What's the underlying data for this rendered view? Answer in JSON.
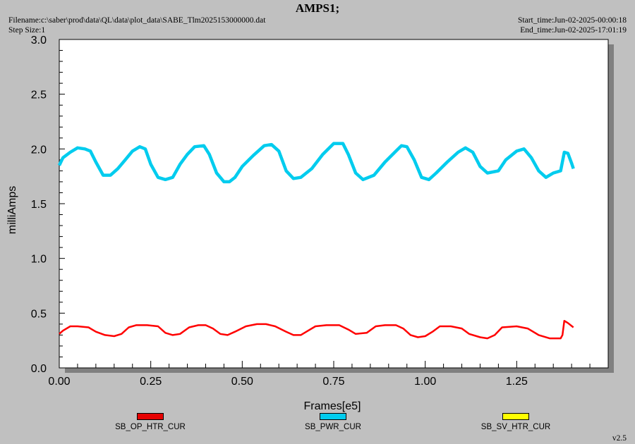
{
  "header": {
    "title": "AMPS1;",
    "filename": "Filename:c:\\saber\\prod\\data\\QL\\data\\plot_data\\SABE_Tlm2025153000000.dat",
    "step_size": "Step Size:1",
    "start_time": "Start_time:Jun-02-2025-00:00:18",
    "end_time": "End_time:Jun-02-2025-17:01:19",
    "version": "v2.5"
  },
  "chart_data": {
    "type": "line",
    "title": "AMPS1;",
    "xlabel": "Frames[e5]",
    "ylabel": "milliAmps",
    "xlim": [
      0,
      1.5
    ],
    "ylim": [
      0,
      3.0
    ],
    "x_ticks": [
      "0.00",
      "0.25",
      "0.50",
      "0.75",
      "1.00",
      "1.25"
    ],
    "y_ticks": [
      "0.0",
      "0.5",
      "1.0",
      "1.5",
      "2.0",
      "2.5",
      "3.0"
    ],
    "legend_position": "bottom",
    "series": [
      {
        "name": "SB_OP_HTR_CUR",
        "color": "#ff0000",
        "x": [
          0.0,
          0.01,
          0.03,
          0.05,
          0.08,
          0.1,
          0.125,
          0.15,
          0.17,
          0.19,
          0.21,
          0.24,
          0.27,
          0.29,
          0.31,
          0.33,
          0.355,
          0.38,
          0.4,
          0.42,
          0.44,
          0.46,
          0.48,
          0.51,
          0.54,
          0.565,
          0.59,
          0.62,
          0.64,
          0.66,
          0.68,
          0.7,
          0.73,
          0.765,
          0.79,
          0.81,
          0.84,
          0.865,
          0.89,
          0.92,
          0.94,
          0.96,
          0.98,
          1.0,
          1.02,
          1.04,
          1.07,
          1.1,
          1.12,
          1.15,
          1.17,
          1.19,
          1.21,
          1.25,
          1.28,
          1.31,
          1.34,
          1.37,
          1.375,
          1.38,
          1.39,
          1.405
        ],
        "y": [
          0.31,
          0.34,
          0.38,
          0.38,
          0.37,
          0.33,
          0.3,
          0.29,
          0.31,
          0.37,
          0.39,
          0.39,
          0.38,
          0.32,
          0.3,
          0.31,
          0.37,
          0.39,
          0.39,
          0.36,
          0.31,
          0.3,
          0.33,
          0.38,
          0.4,
          0.4,
          0.38,
          0.33,
          0.3,
          0.3,
          0.34,
          0.38,
          0.39,
          0.39,
          0.35,
          0.31,
          0.32,
          0.38,
          0.39,
          0.39,
          0.36,
          0.3,
          0.28,
          0.29,
          0.33,
          0.38,
          0.38,
          0.36,
          0.31,
          0.28,
          0.27,
          0.3,
          0.37,
          0.38,
          0.36,
          0.3,
          0.27,
          0.27,
          0.3,
          0.43,
          0.41,
          0.37
        ]
      },
      {
        "name": "SB_PWR_CUR",
        "color": "#00ccee",
        "x": [
          0.0,
          0.01,
          0.03,
          0.05,
          0.07,
          0.085,
          0.1,
          0.12,
          0.14,
          0.16,
          0.18,
          0.2,
          0.22,
          0.235,
          0.25,
          0.27,
          0.29,
          0.31,
          0.33,
          0.35,
          0.37,
          0.395,
          0.41,
          0.43,
          0.45,
          0.465,
          0.48,
          0.5,
          0.53,
          0.56,
          0.58,
          0.6,
          0.62,
          0.64,
          0.66,
          0.69,
          0.72,
          0.75,
          0.775,
          0.79,
          0.81,
          0.83,
          0.86,
          0.89,
          0.92,
          0.935,
          0.95,
          0.97,
          0.99,
          1.01,
          1.03,
          1.06,
          1.09,
          1.11,
          1.13,
          1.15,
          1.17,
          1.2,
          1.22,
          1.25,
          1.27,
          1.29,
          1.31,
          1.33,
          1.35,
          1.37,
          1.38,
          1.39,
          1.4,
          1.405
        ],
        "y": [
          1.85,
          1.92,
          1.97,
          2.01,
          2.0,
          1.98,
          1.88,
          1.76,
          1.76,
          1.82,
          1.9,
          1.98,
          2.02,
          2.0,
          1.86,
          1.74,
          1.72,
          1.74,
          1.86,
          1.95,
          2.02,
          2.03,
          1.95,
          1.78,
          1.7,
          1.7,
          1.74,
          1.84,
          1.94,
          2.03,
          2.04,
          1.98,
          1.8,
          1.73,
          1.74,
          1.82,
          1.95,
          2.05,
          2.05,
          1.95,
          1.78,
          1.72,
          1.76,
          1.88,
          1.98,
          2.03,
          2.02,
          1.9,
          1.74,
          1.72,
          1.78,
          1.88,
          1.97,
          2.01,
          1.97,
          1.84,
          1.78,
          1.8,
          1.9,
          1.98,
          2.0,
          1.92,
          1.8,
          1.74,
          1.78,
          1.8,
          1.97,
          1.96,
          1.87,
          1.82
        ]
      },
      {
        "name": "SB_SV_HTR_CUR",
        "color": "#ffff00",
        "x": [],
        "y": []
      }
    ]
  }
}
